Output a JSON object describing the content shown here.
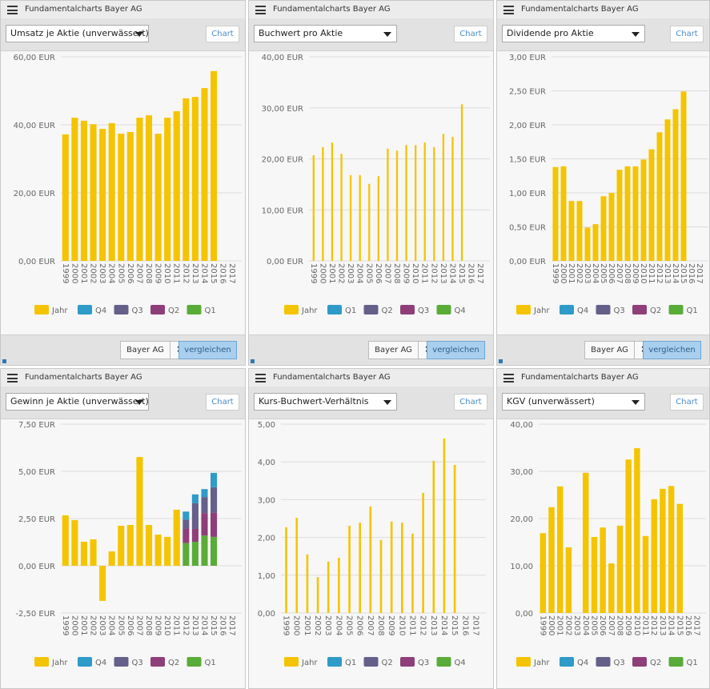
{
  "panels": [
    {
      "header": "Fundamentalcharts Bayer AG",
      "dropdown": "Umsatz je Aktie (unverwässert)",
      "button": "Chart",
      "company": "Bayer AG",
      "compare": "vergleichen"
    },
    {
      "header": "Fundamentalcharts Bayer AG",
      "dropdown": "Buchwert pro Aktie",
      "button": "Chart",
      "company": "Bayer AG",
      "compare": "vergleichen"
    },
    {
      "header": "Fundamentalcharts Bayer AG",
      "dropdown": "Dividende pro Aktie",
      "button": "Chart",
      "company": "Bayer AG",
      "compare": "vergleichen"
    },
    {
      "header": "Fundamentalcharts Bayer AG",
      "dropdown": "Gewinn je Aktie (unverwässert)",
      "button": "Chart"
    },
    {
      "header": "Fundamentalcharts Bayer AG",
      "dropdown": "Kurs-Buchwert-Verhältnis",
      "button": "Chart"
    },
    {
      "header": "Fundamentalcharts Bayer AG",
      "dropdown": "KGV (unverwässert)",
      "button": "Chart"
    }
  ],
  "chart_data": [
    {
      "type": "bar",
      "categories": [
        "1999",
        "2000",
        "2001",
        "2002",
        "2003",
        "2004",
        "2005",
        "2006",
        "2007",
        "2008",
        "2009",
        "2010",
        "2011",
        "2012",
        "2013",
        "2014",
        "2015",
        "2016",
        "2017"
      ],
      "series": [
        {
          "name": "Jahr",
          "color": "#f5c400",
          "values": [
            37.2,
            42.1,
            41.2,
            40.2,
            38.8,
            40.5,
            37.4,
            37.9,
            42.1,
            42.8,
            37.4,
            42.1,
            44,
            47.8,
            48.2,
            50.8,
            55.8,
            null,
            null
          ]
        },
        {
          "name": "Q4",
          "color": "#2e9bc8",
          "values": [
            null,
            null,
            null,
            null,
            null,
            null,
            null,
            null,
            null,
            null,
            null,
            null,
            null,
            null,
            null,
            null,
            null,
            null,
            null
          ]
        },
        {
          "name": "Q3",
          "color": "#65608a",
          "values": [
            null,
            null,
            null,
            null,
            null,
            null,
            null,
            null,
            null,
            null,
            null,
            null,
            null,
            null,
            null,
            null,
            null,
            null,
            null
          ]
        },
        {
          "name": "Q2",
          "color": "#8e3f7a",
          "values": [
            null,
            null,
            null,
            null,
            null,
            null,
            null,
            null,
            null,
            null,
            null,
            null,
            null,
            null,
            null,
            null,
            null,
            null,
            null
          ]
        },
        {
          "name": "Q1",
          "color": "#5aac38",
          "values": [
            null,
            null,
            null,
            null,
            null,
            null,
            null,
            null,
            null,
            null,
            null,
            null,
            null,
            null,
            null,
            null,
            null,
            null,
            null
          ]
        }
      ],
      "ylim": [
        0,
        60
      ],
      "yticks": [
        {
          "value": 0,
          "label": "0,00 EUR"
        },
        {
          "value": 20,
          "label": "20,00 EUR"
        },
        {
          "value": 40,
          "label": "40,00 EUR"
        },
        {
          "value": 60,
          "label": "60,00 EUR"
        }
      ],
      "grid": true
    },
    {
      "type": "bar",
      "categories": [
        "1999",
        "2000",
        "2001",
        "2002",
        "2003",
        "2004",
        "2005",
        "2006",
        "2007",
        "2008",
        "2009",
        "2010",
        "2011",
        "2012",
        "2013",
        "2014",
        "2015",
        "2016",
        "2017"
      ],
      "series": [
        {
          "name": "Jahr",
          "color": "#f5c400",
          "values": [
            20.7,
            22.3,
            23.2,
            21,
            16.8,
            16.8,
            15.1,
            16.6,
            22,
            21.6,
            22.7,
            22.7,
            23.2,
            22.3,
            24.9,
            24.3,
            30.7,
            null,
            null
          ]
        },
        {
          "name": "Q1",
          "color": "#2e9bc8",
          "values": [
            null,
            null,
            null,
            null,
            null,
            null,
            null,
            null,
            null,
            null,
            null,
            null,
            null,
            null,
            null,
            null,
            null,
            null,
            null
          ]
        },
        {
          "name": "Q2",
          "color": "#65608a",
          "values": [
            null,
            null,
            null,
            null,
            null,
            null,
            null,
            null,
            null,
            null,
            null,
            null,
            null,
            null,
            null,
            null,
            null,
            null,
            null
          ]
        },
        {
          "name": "Q3",
          "color": "#8e3f7a",
          "values": [
            null,
            null,
            null,
            null,
            null,
            null,
            null,
            null,
            null,
            null,
            null,
            null,
            null,
            null,
            null,
            null,
            null,
            null,
            null
          ]
        },
        {
          "name": "Q4",
          "color": "#5aac38",
          "values": [
            null,
            null,
            null,
            null,
            null,
            null,
            null,
            null,
            null,
            null,
            null,
            null,
            null,
            null,
            null,
            null,
            null,
            null,
            null
          ]
        }
      ],
      "ylim": [
        0,
        40
      ],
      "yticks": [
        {
          "value": 0,
          "label": "0,00 EUR"
        },
        {
          "value": 10,
          "label": "10,00 EUR"
        },
        {
          "value": 20,
          "label": "20,00 EUR"
        },
        {
          "value": 30,
          "label": "30,00 EUR"
        },
        {
          "value": 40,
          "label": "40,00 EUR"
        }
      ],
      "grid": true
    },
    {
      "type": "bar",
      "categories": [
        "1999",
        "2000",
        "2001",
        "2002",
        "2003",
        "2004",
        "2005",
        "2006",
        "2007",
        "2008",
        "2009",
        "2010",
        "2011",
        "2012",
        "2013",
        "2014",
        "2015",
        "2016",
        "2017"
      ],
      "series": [
        {
          "name": "Jahr",
          "color": "#f5c400",
          "values": [
            1.38,
            1.39,
            0.88,
            0.88,
            0.49,
            0.54,
            0.95,
            1.0,
            1.34,
            1.39,
            1.39,
            1.49,
            1.64,
            1.89,
            2.08,
            2.23,
            2.49,
            null,
            null
          ]
        },
        {
          "name": "Q4",
          "color": "#2e9bc8",
          "values": [
            null,
            null,
            null,
            null,
            null,
            null,
            null,
            null,
            null,
            null,
            null,
            null,
            null,
            null,
            null,
            null,
            null,
            null,
            null
          ]
        },
        {
          "name": "Q3",
          "color": "#65608a",
          "values": [
            null,
            null,
            null,
            null,
            null,
            null,
            null,
            null,
            null,
            null,
            null,
            null,
            null,
            null,
            null,
            null,
            null,
            null,
            null
          ]
        },
        {
          "name": "Q2",
          "color": "#8e3f7a",
          "values": [
            null,
            null,
            null,
            null,
            null,
            null,
            null,
            null,
            null,
            null,
            null,
            null,
            null,
            null,
            null,
            null,
            null,
            null,
            null
          ]
        },
        {
          "name": "Q1",
          "color": "#5aac38",
          "values": [
            null,
            null,
            null,
            null,
            null,
            null,
            null,
            null,
            null,
            null,
            null,
            null,
            null,
            null,
            null,
            null,
            null,
            null,
            null
          ]
        }
      ],
      "ylim": [
        0,
        3
      ],
      "yticks": [
        {
          "value": 0,
          "label": "0,00 EUR"
        },
        {
          "value": 0.5,
          "label": "0,50 EUR"
        },
        {
          "value": 1,
          "label": "1,00 EUR"
        },
        {
          "value": 1.5,
          "label": "1,50 EUR"
        },
        {
          "value": 2,
          "label": "2,00 EUR"
        },
        {
          "value": 2.5,
          "label": "2,50 EUR"
        },
        {
          "value": 3,
          "label": "3,00 EUR"
        }
      ],
      "grid": true
    },
    {
      "type": "bar",
      "categories": [
        "1999",
        "2000",
        "2001",
        "2002",
        "2003",
        "2004",
        "2005",
        "2006",
        "2007",
        "2008",
        "2009",
        "2010",
        "2011",
        "2012",
        "2013",
        "2014",
        "2015",
        "2016",
        "2017"
      ],
      "series": [
        {
          "name": "Jahr",
          "color": "#f5c400",
          "values": [
            2.67,
            2.42,
            1.27,
            1.4,
            -1.86,
            0.76,
            2.12,
            2.16,
            5.76,
            2.16,
            1.65,
            1.53,
            2.97,
            null,
            null,
            null,
            null,
            null,
            null
          ]
        },
        {
          "name": "Q4",
          "color": "#2e9bc8",
          "values": [
            null,
            null,
            null,
            null,
            null,
            null,
            null,
            null,
            null,
            null,
            null,
            null,
            null,
            0.42,
            0.47,
            0.42,
            0.76,
            null,
            null
          ]
        },
        {
          "name": "Q3",
          "color": "#65608a",
          "values": [
            null,
            null,
            null,
            null,
            null,
            null,
            null,
            null,
            null,
            null,
            null,
            null,
            null,
            0.5,
            1.36,
            0.85,
            1.36,
            null,
            null
          ]
        },
        {
          "name": "Q2",
          "color": "#8e3f7a",
          "values": [
            null,
            null,
            null,
            null,
            null,
            null,
            null,
            null,
            null,
            null,
            null,
            null,
            null,
            0.75,
            0.68,
            1.19,
            1.27,
            null,
            null
          ]
        },
        {
          "name": "Q1",
          "color": "#5aac38",
          "values": [
            null,
            null,
            null,
            null,
            null,
            null,
            null,
            null,
            null,
            null,
            null,
            null,
            null,
            1.2,
            1.27,
            1.6,
            1.53,
            null,
            null
          ]
        }
      ],
      "ylim": [
        -2.5,
        7.5
      ],
      "yticks": [
        {
          "value": -2.5,
          "label": "-2,50 EUR"
        },
        {
          "value": 0,
          "label": "0,00 EUR"
        },
        {
          "value": 2.5,
          "label": "2,50 EUR"
        },
        {
          "value": 5,
          "label": "5,00 EUR"
        },
        {
          "value": 7.5,
          "label": "7,50 EUR"
        }
      ],
      "grid": true
    },
    {
      "type": "bar",
      "categories": [
        "1999",
        "2000",
        "2001",
        "2002",
        "2003",
        "2004",
        "2005",
        "2006",
        "2007",
        "2008",
        "2009",
        "2010",
        "2011",
        "2012",
        "2013",
        "2014",
        "2015",
        "2016",
        "2017"
      ],
      "series": [
        {
          "name": "Jahr",
          "color": "#f5c400",
          "values": [
            2.27,
            2.52,
            1.55,
            0.95,
            1.36,
            1.46,
            2.31,
            2.39,
            2.82,
            1.93,
            2.42,
            2.39,
            2.1,
            3.18,
            4.03,
            4.62,
            3.92,
            null,
            null
          ]
        },
        {
          "name": "Q1",
          "color": "#2e9bc8",
          "values": [
            null,
            null,
            null,
            null,
            null,
            null,
            null,
            null,
            null,
            null,
            null,
            null,
            null,
            null,
            null,
            null,
            null,
            null,
            null
          ]
        },
        {
          "name": "Q2",
          "color": "#65608a",
          "values": [
            null,
            null,
            null,
            null,
            null,
            null,
            null,
            null,
            null,
            null,
            null,
            null,
            null,
            null,
            null,
            null,
            null,
            null,
            null
          ]
        },
        {
          "name": "Q3",
          "color": "#8e3f7a",
          "values": [
            null,
            null,
            null,
            null,
            null,
            null,
            null,
            null,
            null,
            null,
            null,
            null,
            null,
            null,
            null,
            null,
            null,
            null,
            null
          ]
        },
        {
          "name": "Q4",
          "color": "#5aac38",
          "values": [
            null,
            null,
            null,
            null,
            null,
            null,
            null,
            null,
            null,
            null,
            null,
            null,
            null,
            null,
            null,
            null,
            null,
            null,
            null
          ]
        }
      ],
      "ylim": [
        0,
        5
      ],
      "yticks": [
        {
          "value": 0,
          "label": "0,00"
        },
        {
          "value": 1,
          "label": "1,00"
        },
        {
          "value": 2,
          "label": "2,00"
        },
        {
          "value": 3,
          "label": "3,00"
        },
        {
          "value": 4,
          "label": "4,00"
        },
        {
          "value": 5,
          "label": "5,00"
        }
      ],
      "grid": true
    },
    {
      "type": "bar",
      "categories": [
        "1999",
        "2000",
        "2001",
        "2002",
        "2003",
        "2004",
        "2005",
        "2006",
        "2007",
        "2008",
        "2009",
        "2010",
        "2011",
        "2012",
        "2013",
        "2014",
        "2015",
        "2016",
        "2017"
      ],
      "series": [
        {
          "name": "Jahr",
          "color": "#f5c400",
          "values": [
            16.9,
            22.4,
            26.8,
            13.9,
            null,
            29.7,
            16.1,
            18.1,
            10.5,
            18.5,
            32.5,
            34.9,
            16.3,
            24.1,
            26.3,
            26.9,
            23.1,
            null,
            null
          ]
        },
        {
          "name": "Q4",
          "color": "#2e9bc8",
          "values": [
            null,
            null,
            null,
            null,
            null,
            null,
            null,
            null,
            null,
            null,
            null,
            null,
            null,
            null,
            null,
            null,
            null,
            null,
            null
          ]
        },
        {
          "name": "Q3",
          "color": "#65608a",
          "values": [
            null,
            null,
            null,
            null,
            null,
            null,
            null,
            null,
            null,
            null,
            null,
            null,
            null,
            null,
            null,
            null,
            null,
            null,
            null
          ]
        },
        {
          "name": "Q2",
          "color": "#8e3f7a",
          "values": [
            null,
            null,
            null,
            null,
            null,
            null,
            null,
            null,
            null,
            null,
            null,
            null,
            null,
            null,
            null,
            null,
            null,
            null,
            null
          ]
        },
        {
          "name": "Q1",
          "color": "#5aac38",
          "values": [
            null,
            null,
            null,
            null,
            null,
            null,
            null,
            null,
            null,
            null,
            null,
            null,
            null,
            null,
            null,
            null,
            null,
            null,
            null
          ]
        }
      ],
      "ylim": [
        0,
        40
      ],
      "yticks": [
        {
          "value": 0,
          "label": "0,00"
        },
        {
          "value": 10,
          "label": "10,00"
        },
        {
          "value": 20,
          "label": "20,00"
        },
        {
          "value": 30,
          "label": "30,00"
        },
        {
          "value": 40,
          "label": "40,00"
        }
      ],
      "grid": true
    }
  ]
}
